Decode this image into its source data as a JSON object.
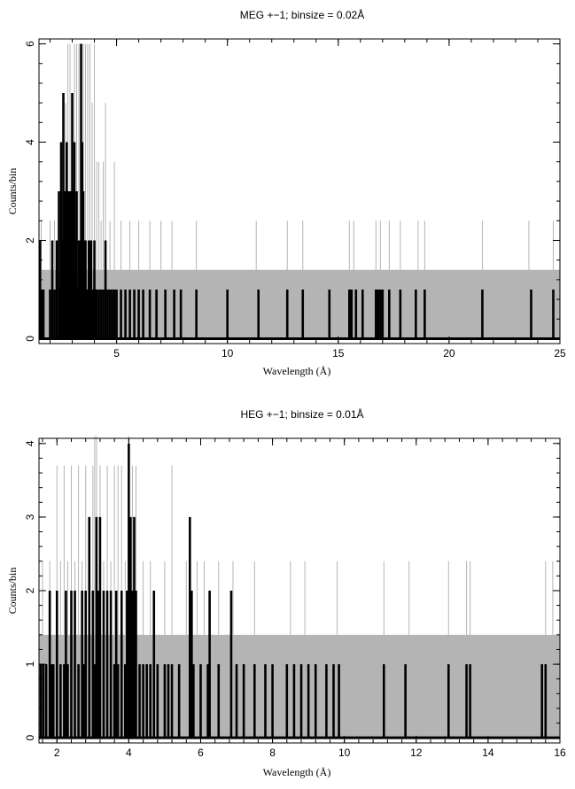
{
  "chart_data": [
    {
      "type": "line",
      "title": "MEG +−1; binsize = 0.02Å",
      "xlabel": "Wavelength (Å)",
      "ylabel": "Counts/bin",
      "xlim": [
        1.5,
        25
      ],
      "ylim": [
        -0.1,
        6.1
      ],
      "xticks": [
        5,
        10,
        15,
        20,
        25
      ],
      "yticks": [
        0,
        2,
        4,
        6
      ],
      "grid": false,
      "legend": "none",
      "series": [
        {
          "style": "black-thick-histogram-counts",
          "color": "#000000",
          "x": [
            1.55,
            1.6,
            1.65,
            1.7,
            2.0,
            2.1,
            2.2,
            2.3,
            2.4,
            2.45,
            2.5,
            2.55,
            2.6,
            2.65,
            2.7,
            2.75,
            2.8,
            2.85,
            2.9,
            2.95,
            3.0,
            3.05,
            3.1,
            3.15,
            3.2,
            3.25,
            3.3,
            3.35,
            3.4,
            3.45,
            3.5,
            3.55,
            3.6,
            3.65,
            3.7,
            3.75,
            3.8,
            3.85,
            3.9,
            3.95,
            4.0,
            4.05,
            4.1,
            4.2,
            4.3,
            4.4,
            4.5,
            4.6,
            4.7,
            4.8,
            4.9,
            5.0,
            5.2,
            5.4,
            5.6,
            5.8,
            6.0,
            6.2,
            6.5,
            6.8,
            7.2,
            7.6,
            7.9,
            8.6,
            10.0,
            11.4,
            12.7,
            13.4,
            14.6,
            15.5,
            15.6,
            15.8,
            16.1,
            16.7,
            16.8,
            16.9,
            17.0,
            17.3,
            17.8,
            18.5,
            18.9,
            21.5,
            23.7,
            24.7
          ],
          "y": [
            2,
            1,
            1,
            1,
            1,
            2,
            1,
            2,
            3,
            1,
            4,
            2,
            5,
            3,
            3,
            4,
            2,
            3,
            1,
            3,
            5,
            3,
            4,
            2,
            3,
            1,
            2,
            2,
            6,
            4,
            3,
            2,
            2,
            1,
            1,
            2,
            1,
            2,
            1,
            1,
            2,
            1,
            1,
            1,
            1,
            1,
            2,
            1,
            1,
            1,
            1,
            1,
            1,
            1,
            1,
            1,
            1,
            1,
            1,
            1,
            1,
            1,
            1,
            1,
            1,
            1,
            1,
            1,
            1,
            1,
            1,
            1,
            1,
            1,
            1,
            1,
            1,
            1,
            1,
            1,
            1,
            1,
            1,
            1
          ]
        },
        {
          "style": "gray-thin-counts",
          "color": "#b4b4b4",
          "x": [
            1.6,
            2.0,
            2.2,
            2.4,
            2.6,
            2.7,
            2.8,
            2.9,
            3.0,
            3.1,
            3.2,
            3.3,
            3.4,
            3.5,
            3.6,
            3.7,
            3.8,
            3.9,
            4.0,
            4.1,
            4.2,
            4.3,
            4.4,
            4.5,
            4.7,
            4.9,
            5.2,
            5.6,
            6.0,
            6.5,
            7.0,
            7.5,
            8.6,
            11.3,
            12.7,
            13.4,
            15.5,
            15.7,
            16.7,
            16.9,
            17.3,
            17.8,
            18.6,
            18.9,
            21.5,
            23.6,
            24.7
          ],
          "y": [
            2.4,
            2.4,
            2.4,
            2.4,
            3.6,
            4.8,
            6,
            6,
            4.8,
            6,
            6,
            6,
            4.8,
            6,
            6,
            6,
            6,
            4.8,
            6,
            3.6,
            3.6,
            2.4,
            3.6,
            4.8,
            2.4,
            3.6,
            2.4,
            2.4,
            2.4,
            2.4,
            2.4,
            2.4,
            2.4,
            2.4,
            2.4,
            2.4,
            2.4,
            2.4,
            2.4,
            2.4,
            2.4,
            2.4,
            2.4,
            2.4,
            2.4,
            2.4,
            2.4
          ]
        },
        {
          "style": "gray-band-upper",
          "color": "#b4b4b4",
          "x": [
            1.5,
            20.3,
            20.35,
            25
          ],
          "y": [
            1.4,
            1.4,
            1.4,
            1.4
          ]
        }
      ]
    },
    {
      "type": "line",
      "title": "HEG +−1; binsize = 0.01Å",
      "xlabel": "Wavelength (Å)",
      "ylabel": "Counts/bin",
      "xlim": [
        1.5,
        16
      ],
      "ylim": [
        -0.07,
        4.07
      ],
      "xticks": [
        2,
        4,
        6,
        8,
        10,
        12,
        14,
        16
      ],
      "yticks": [
        0,
        1,
        2,
        3,
        4
      ],
      "grid": false,
      "legend": "none",
      "series": [
        {
          "style": "black-thick-histogram-counts",
          "color": "#000000",
          "x": [
            1.55,
            1.62,
            1.7,
            1.8,
            1.85,
            1.9,
            2.0,
            2.1,
            2.2,
            2.25,
            2.3,
            2.4,
            2.5,
            2.6,
            2.7,
            2.75,
            2.8,
            2.9,
            3.0,
            3.05,
            3.1,
            3.15,
            3.2,
            3.3,
            3.4,
            3.5,
            3.6,
            3.65,
            3.7,
            3.8,
            3.9,
            3.95,
            4.0,
            4.05,
            4.1,
            4.15,
            4.2,
            4.3,
            4.4,
            4.5,
            4.6,
            4.7,
            4.8,
            5.0,
            5.1,
            5.2,
            5.4,
            5.7,
            5.75,
            5.8,
            6.0,
            6.2,
            6.25,
            6.5,
            6.85,
            7.0,
            7.2,
            7.5,
            7.8,
            8.0,
            8.4,
            8.6,
            8.8,
            9.0,
            9.2,
            9.5,
            9.7,
            9.85,
            11.1,
            11.7,
            12.9,
            13.4,
            13.5,
            15.5,
            15.6
          ],
          "y": [
            1,
            1,
            1,
            2,
            1,
            1,
            2,
            1,
            1,
            2,
            1,
            2,
            2,
            1,
            2,
            1,
            2,
            3,
            2,
            1,
            3,
            2,
            3,
            2,
            2,
            2,
            1,
            2,
            1,
            2,
            1,
            2,
            4,
            3,
            2,
            3,
            2,
            1,
            1,
            1,
            1,
            2,
            1,
            1,
            1,
            1,
            1,
            3,
            2,
            1,
            1,
            1,
            2,
            1,
            2,
            1,
            1,
            1,
            1,
            1,
            1,
            1,
            1,
            1,
            1,
            1,
            1,
            1,
            1,
            1,
            1,
            1,
            1,
            1,
            1
          ]
        },
        {
          "style": "gray-thin-counts",
          "color": "#b4b4b4",
          "x": [
            1.6,
            1.8,
            2.0,
            2.1,
            2.2,
            2.3,
            2.4,
            2.5,
            2.6,
            2.7,
            2.8,
            2.9,
            3.0,
            3.05,
            3.1,
            3.2,
            3.3,
            3.4,
            3.5,
            3.6,
            3.7,
            3.8,
            3.9,
            4.0,
            4.1,
            4.2,
            4.4,
            4.6,
            5.0,
            5.2,
            5.6,
            5.9,
            6.1,
            6.5,
            6.9,
            7.5,
            8.5,
            8.9,
            9.8,
            11.1,
            11.8,
            12.9,
            13.4,
            13.5,
            15.6,
            15.8
          ],
          "y": [
            2.4,
            2.4,
            3.7,
            2.4,
            3.7,
            2.4,
            3.7,
            2.4,
            3.7,
            2.4,
            3.7,
            2.4,
            3.7,
            4.1,
            4.1,
            3.7,
            2.4,
            3.7,
            2.4,
            3.7,
            3.7,
            3.7,
            2.4,
            4.1,
            3.7,
            3.7,
            2.4,
            2.4,
            2.4,
            3.7,
            2.4,
            2.4,
            2.4,
            2.4,
            2.4,
            2.4,
            2.4,
            2.4,
            2.4,
            2.4,
            2.4,
            2.4,
            2.4,
            2.4,
            2.4,
            2.4
          ]
        },
        {
          "style": "gray-band-upper",
          "color": "#b4b4b4",
          "x": [
            1.5,
            16
          ],
          "y": [
            1.4,
            1.4
          ]
        }
      ]
    }
  ]
}
